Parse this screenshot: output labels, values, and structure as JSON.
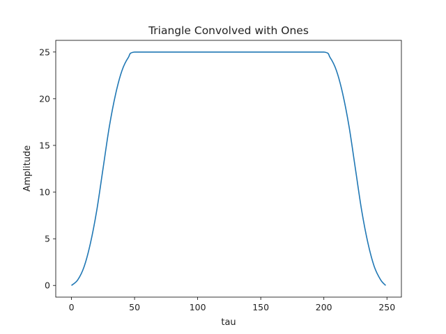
{
  "chart_data": {
    "type": "line",
    "title": "Triangle Convolved with Ones",
    "xlabel": "tau",
    "ylabel": "Amplitude",
    "xlim": [
      -12.45,
      261.45
    ],
    "ylim": [
      -1.25,
      26.25
    ],
    "xticks": [
      0,
      50,
      100,
      150,
      200,
      250
    ],
    "yticks": [
      0,
      5,
      10,
      15,
      20,
      25
    ],
    "grid": false,
    "series": [
      {
        "color": "#1f77b4",
        "x": [
          0,
          5,
          10,
          15,
          20,
          25,
          30,
          35,
          40,
          45,
          50,
          75,
          100,
          125,
          150,
          175,
          200,
          205,
          210,
          215,
          220,
          225,
          230,
          235,
          240,
          245,
          249
        ],
        "y": [
          0,
          0.6,
          2.0,
          4.5,
          8.0,
          12.5,
          17.0,
          20.5,
          23.0,
          24.4,
          25,
          25,
          25,
          25,
          25,
          25,
          25,
          24.4,
          23.0,
          20.5,
          17.0,
          12.5,
          8.0,
          4.5,
          2.0,
          0.6,
          0
        ]
      }
    ]
  }
}
